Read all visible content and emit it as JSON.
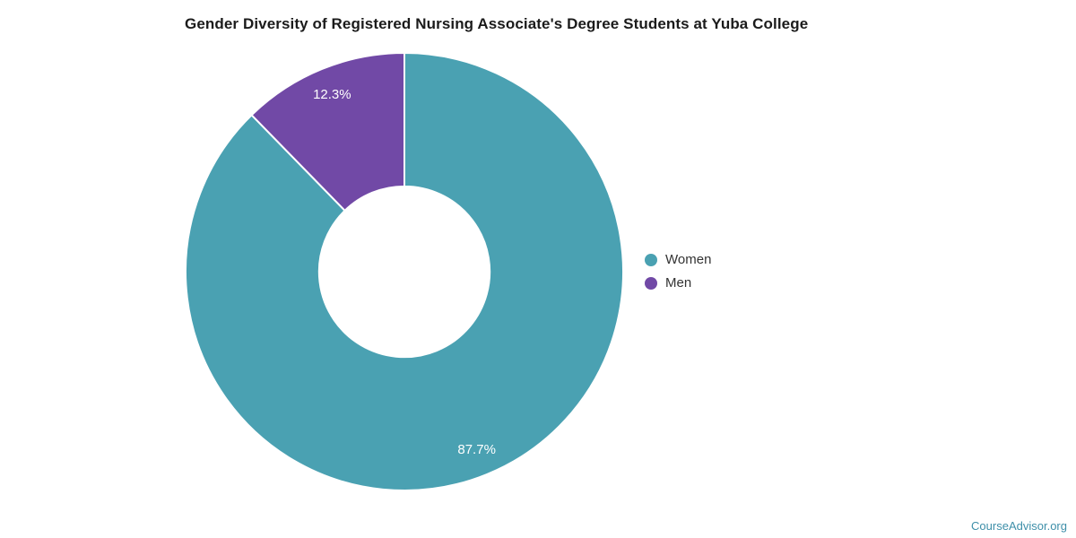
{
  "title": "Gender Diversity of Registered Nursing Associate's Degree Students at Yuba College",
  "watermark": "CourseAdvisor.org",
  "chart_data": {
    "type": "pie",
    "subtype": "donut",
    "title": "Gender Diversity of Registered Nursing Associate's Degree Students at Yuba College",
    "categories": [
      "Women",
      "Men"
    ],
    "values": [
      87.7,
      12.3
    ],
    "unit": "percent",
    "slice_labels": [
      "87.7%",
      "12.3%"
    ],
    "colors": [
      "#4aa1b2",
      "#7149a6"
    ],
    "start_angle_deg": 0,
    "direction": "clockwise",
    "inner_radius_ratio": 0.39,
    "slice_border_color": "#ffffff",
    "label_color": "#ffffff",
    "legend_position": "right",
    "grid": false
  },
  "legend": {
    "items": [
      {
        "label": "Women",
        "color": "#4aa1b2"
      },
      {
        "label": "Men",
        "color": "#7149a6"
      }
    ]
  }
}
